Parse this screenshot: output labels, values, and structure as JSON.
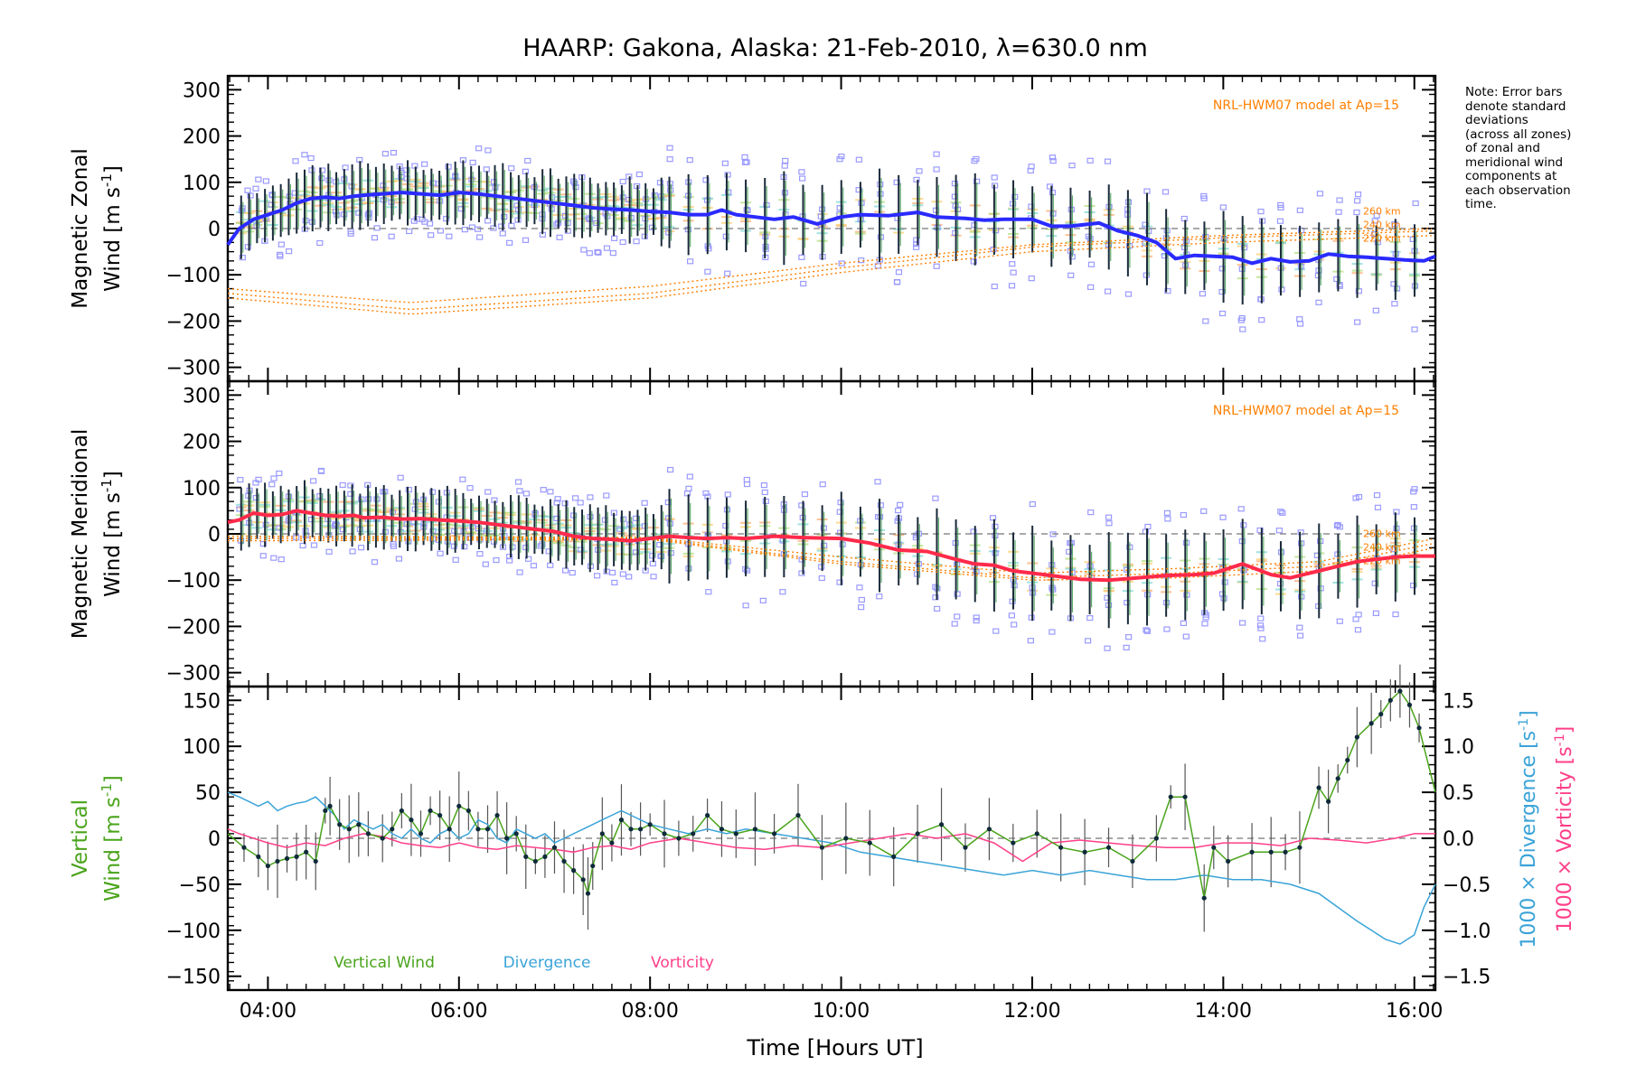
{
  "title": "HAARP: Gakona,  Alaska: 21-Feb-2010, λ=630.0 nm",
  "xlabel": "Time [Hours UT]",
  "note_lines": [
    "Note: Error bars",
    "denote standard",
    "deviations",
    "(across all zones)",
    "of zonal and",
    "meridional wind",
    "components at",
    "each observation",
    "time."
  ],
  "colors": {
    "zonal": "#2a2aff",
    "meridional": "#ff2a4a",
    "vertical": "#4aa41c",
    "divergence": "#3aa3d8",
    "vorticity": "#ff3f88",
    "model": "#ff7f00",
    "samples": "#9a9aff"
  },
  "chart_data": [
    {
      "type": "line",
      "panel": "zonal",
      "ylabel_line1": "Magnetic Zonal",
      "ylabel_line2": "Wind [m s",
      "ylabel_sup": "-1",
      "ylabel_close": "]",
      "ylim": [
        -330,
        330
      ],
      "yticks": [
        -300,
        -200,
        -100,
        0,
        100,
        200,
        300
      ],
      "xlim": [
        3.58,
        16.22
      ],
      "xticks": [
        4,
        6,
        8,
        10,
        12,
        14,
        16
      ],
      "xticklabels": [
        "04:00",
        "06:00",
        "08:00",
        "10:00",
        "12:00",
        "14:00",
        "16:00"
      ],
      "model_label": "NRL-HWM07 model at Ap=15",
      "model_altitudes": [
        "260 km",
        "240 km",
        "220 km"
      ],
      "series": [
        {
          "key": "mean",
          "x": [
            3.58,
            3.7,
            3.85,
            4.0,
            4.15,
            4.3,
            4.45,
            4.6,
            4.75,
            4.9,
            5.0,
            5.2,
            5.4,
            5.6,
            5.8,
            6.0,
            6.2,
            6.4,
            6.6,
            6.8,
            7.0,
            7.2,
            7.4,
            7.6,
            7.8,
            8.0,
            8.2,
            8.4,
            8.6,
            8.75,
            8.9,
            9.1,
            9.3,
            9.5,
            9.75,
            10.0,
            10.2,
            10.5,
            10.8,
            11.0,
            11.3,
            11.5,
            11.7,
            12.0,
            12.2,
            12.4,
            12.7,
            12.9,
            13.1,
            13.3,
            13.5,
            13.7,
            13.9,
            14.1,
            14.3,
            14.5,
            14.7,
            14.9,
            15.1,
            15.3,
            15.5,
            15.7,
            15.9,
            16.1,
            16.22
          ],
          "y": [
            -35,
            0,
            20,
            30,
            40,
            55,
            65,
            68,
            65,
            70,
            72,
            75,
            78,
            75,
            72,
            78,
            75,
            70,
            65,
            60,
            55,
            50,
            45,
            42,
            40,
            37,
            35,
            30,
            30,
            40,
            30,
            25,
            20,
            25,
            10,
            25,
            30,
            28,
            35,
            25,
            22,
            18,
            20,
            20,
            5,
            5,
            12,
            -5,
            -15,
            -30,
            -65,
            -58,
            -60,
            -62,
            -75,
            -65,
            -72,
            -70,
            -55,
            -60,
            -62,
            -65,
            -68,
            -70,
            -60
          ]
        }
      ]
    },
    {
      "type": "line",
      "panel": "meridional",
      "ylabel_line1": "Magnetic Meridional",
      "ylabel_line2": "Wind [m s",
      "ylabel_sup": "-1",
      "ylabel_close": "]",
      "ylim": [
        -330,
        330
      ],
      "yticks": [
        -300,
        -200,
        -100,
        0,
        100,
        200,
        300
      ],
      "xlim": [
        3.58,
        16.22
      ],
      "xticks": [
        4,
        6,
        8,
        10,
        12,
        14,
        16
      ],
      "xticklabels": [
        "04:00",
        "06:00",
        "08:00",
        "10:00",
        "12:00",
        "14:00",
        "16:00"
      ],
      "model_label": "NRL-HWM07 model at Ap=15",
      "model_altitudes": [
        "260 km",
        "240 km",
        "220 km"
      ],
      "series": [
        {
          "key": "mean",
          "x": [
            3.58,
            3.7,
            3.85,
            4.0,
            4.15,
            4.3,
            4.45,
            4.6,
            4.75,
            4.9,
            5.0,
            5.2,
            5.4,
            5.6,
            5.8,
            6.0,
            6.2,
            6.4,
            6.6,
            6.8,
            7.0,
            7.2,
            7.4,
            7.6,
            7.8,
            8.0,
            8.2,
            8.4,
            8.6,
            8.8,
            9.0,
            9.3,
            9.6,
            10.0,
            10.3,
            10.6,
            10.9,
            11.2,
            11.4,
            11.6,
            11.8,
            12.0,
            12.2,
            12.5,
            12.8,
            13.1,
            13.4,
            13.7,
            13.9,
            14.2,
            14.5,
            14.7,
            15.0,
            15.2,
            15.4,
            15.6,
            15.8,
            16.0,
            16.22
          ],
          "y": [
            25,
            30,
            45,
            40,
            42,
            50,
            45,
            40,
            38,
            40,
            35,
            36,
            32,
            33,
            30,
            28,
            25,
            20,
            15,
            10,
            5,
            -5,
            -10,
            -12,
            -15,
            -10,
            -5,
            -8,
            -10,
            -8,
            -10,
            -5,
            -8,
            -10,
            -20,
            -35,
            -38,
            -55,
            -65,
            -68,
            -80,
            -85,
            -90,
            -98,
            -100,
            -95,
            -90,
            -88,
            -85,
            -65,
            -88,
            -95,
            -80,
            -70,
            -60,
            -55,
            -50,
            -48,
            -48
          ]
        }
      ]
    },
    {
      "type": "line",
      "panel": "vertical",
      "ylabel_line1": "Vertical",
      "ylabel_line2": "Wind [m s",
      "ylabel_sup": "-1",
      "ylabel_close": "]",
      "y2label_div": "1000 × Divergence [s",
      "y2label_vort": "1000 × Vorticity [s",
      "y2label_sup": "-1",
      "y2label_close": "]",
      "ylim": [
        -165,
        165
      ],
      "yticks": [
        -150,
        -100,
        -50,
        0,
        50,
        100,
        150
      ],
      "y2lim": [
        -1.65,
        1.65
      ],
      "y2ticks": [
        -1.5,
        -1.0,
        -0.5,
        0.0,
        0.5,
        1.0,
        1.5
      ],
      "y2ticklabels": [
        "-1.5",
        "-1.0",
        "-0.5",
        "0.0",
        "0.5",
        "1.0",
        "1.5"
      ],
      "xlim": [
        3.58,
        16.22
      ],
      "xticks": [
        4,
        6,
        8,
        10,
        12,
        14,
        16
      ],
      "xticklabels": [
        "04:00",
        "06:00",
        "08:00",
        "10:00",
        "12:00",
        "14:00",
        "16:00"
      ],
      "legend": [
        "Vertical Wind",
        "Divergence",
        "Vorticity"
      ],
      "series": [
        {
          "name": "Vertical Wind",
          "x": [
            3.58,
            3.75,
            3.9,
            4.0,
            4.1,
            4.2,
            4.3,
            4.4,
            4.5,
            4.6,
            4.65,
            4.75,
            4.85,
            4.95,
            5.05,
            5.2,
            5.3,
            5.4,
            5.5,
            5.6,
            5.7,
            5.8,
            5.9,
            6.0,
            6.1,
            6.2,
            6.3,
            6.4,
            6.5,
            6.6,
            6.7,
            6.8,
            6.9,
            7.0,
            7.1,
            7.2,
            7.3,
            7.35,
            7.4,
            7.5,
            7.6,
            7.7,
            7.8,
            7.9,
            8.0,
            8.15,
            8.3,
            8.45,
            8.6,
            8.75,
            8.9,
            9.1,
            9.3,
            9.55,
            9.8,
            10.05,
            10.3,
            10.55,
            10.8,
            11.05,
            11.3,
            11.55,
            11.8,
            12.05,
            12.3,
            12.55,
            12.8,
            13.05,
            13.3,
            13.45,
            13.6,
            13.8,
            13.9,
            14.05,
            14.3,
            14.5,
            14.65,
            14.8,
            15.0,
            15.1,
            15.2,
            15.3,
            15.4,
            15.55,
            15.65,
            15.75,
            15.85,
            15.95,
            16.05,
            16.22
          ],
          "y": [
            5,
            -10,
            -20,
            -30,
            -25,
            -22,
            -20,
            -15,
            -25,
            30,
            35,
            15,
            10,
            15,
            5,
            0,
            10,
            30,
            20,
            5,
            30,
            25,
            10,
            35,
            30,
            10,
            10,
            25,
            0,
            5,
            -20,
            -25,
            -20,
            -10,
            -25,
            -35,
            -45,
            -60,
            -30,
            5,
            -5,
            20,
            10,
            10,
            15,
            5,
            0,
            5,
            25,
            10,
            5,
            10,
            5,
            25,
            -10,
            0,
            -5,
            -20,
            5,
            15,
            -10,
            10,
            -5,
            5,
            -10,
            -15,
            -10,
            -25,
            0,
            45,
            45,
            -65,
            -10,
            -25,
            -15,
            -15,
            -15,
            -10,
            55,
            40,
            65,
            85,
            110,
            125,
            135,
            150,
            160,
            145,
            120,
            50
          ]
        },
        {
          "name": "Divergence",
          "x": [
            3.58,
            3.7,
            3.8,
            3.9,
            4.0,
            4.1,
            4.2,
            4.3,
            4.4,
            4.5,
            4.6,
            4.7,
            4.8,
            4.9,
            5.0,
            5.1,
            5.2,
            5.3,
            5.4,
            5.5,
            5.6,
            5.7,
            5.8,
            5.9,
            6.0,
            6.1,
            6.2,
            6.3,
            6.4,
            6.5,
            6.6,
            6.7,
            6.8,
            6.9,
            7.0,
            7.1,
            7.2,
            7.3,
            7.4,
            7.5,
            7.6,
            7.7,
            7.8,
            7.9,
            8.0,
            8.2,
            8.4,
            8.6,
            8.8,
            9.0,
            9.3,
            9.6,
            9.9,
            10.2,
            10.5,
            10.8,
            11.1,
            11.4,
            11.7,
            12.0,
            12.3,
            12.6,
            12.9,
            13.2,
            13.5,
            13.8,
            14.1,
            14.4,
            14.7,
            15.0,
            15.2,
            15.4,
            15.55,
            15.7,
            15.85,
            16.0,
            16.1,
            16.22
          ],
          "y": [
            0.5,
            0.45,
            0.4,
            0.35,
            0.4,
            0.3,
            0.35,
            0.38,
            0.4,
            0.45,
            0.35,
            0.25,
            0.1,
            0.2,
            0.15,
            0.1,
            0.15,
            0.05,
            0.0,
            0.1,
            0.0,
            -0.05,
            0.05,
            0.1,
            0.0,
            0.05,
            0.2,
            0.15,
            0.0,
            -0.05,
            0.1,
            0.05,
            0.0,
            0.05,
            -0.05,
            0.0,
            0.05,
            0.1,
            0.15,
            0.2,
            0.25,
            0.3,
            0.25,
            0.2,
            0.15,
            0.1,
            0.05,
            0.1,
            0.05,
            0.1,
            0.05,
            0.0,
            -0.05,
            -0.15,
            -0.2,
            -0.25,
            -0.3,
            -0.35,
            -0.4,
            -0.35,
            -0.4,
            -0.35,
            -0.4,
            -0.45,
            -0.45,
            -0.4,
            -0.45,
            -0.45,
            -0.5,
            -0.6,
            -0.75,
            -0.9,
            -1.0,
            -1.1,
            -1.15,
            -1.05,
            -0.75,
            -0.5
          ]
        },
        {
          "name": "Vorticity",
          "x": [
            3.58,
            3.7,
            3.85,
            4.0,
            4.2,
            4.4,
            4.6,
            4.8,
            5.0,
            5.2,
            5.4,
            5.6,
            5.8,
            6.0,
            6.2,
            6.4,
            6.6,
            6.8,
            7.0,
            7.2,
            7.4,
            7.6,
            7.8,
            8.0,
            8.3,
            8.6,
            8.9,
            9.2,
            9.5,
            9.8,
            10.1,
            10.4,
            10.7,
            11.0,
            11.3,
            11.6,
            11.9,
            12.2,
            12.5,
            12.8,
            13.1,
            13.4,
            13.7,
            14.0,
            14.3,
            14.6,
            14.9,
            15.2,
            15.5,
            15.8,
            16.0,
            16.22
          ],
          "y": [
            0.1,
            0.05,
            0.0,
            -0.05,
            -0.1,
            -0.05,
            -0.08,
            0.0,
            0.05,
            0.02,
            -0.05,
            -0.08,
            -0.1,
            -0.05,
            -0.1,
            -0.12,
            -0.08,
            -0.1,
            -0.12,
            -0.15,
            -0.1,
            -0.08,
            -0.12,
            -0.05,
            0.0,
            -0.05,
            -0.1,
            -0.12,
            -0.08,
            -0.1,
            -0.05,
            0.0,
            0.05,
            0.0,
            0.05,
            -0.05,
            -0.25,
            -0.05,
            -0.02,
            -0.05,
            -0.08,
            -0.1,
            -0.1,
            -0.05,
            -0.05,
            -0.08,
            0.0,
            -0.02,
            -0.05,
            0.0,
            0.05,
            0.05
          ]
        }
      ]
    }
  ]
}
